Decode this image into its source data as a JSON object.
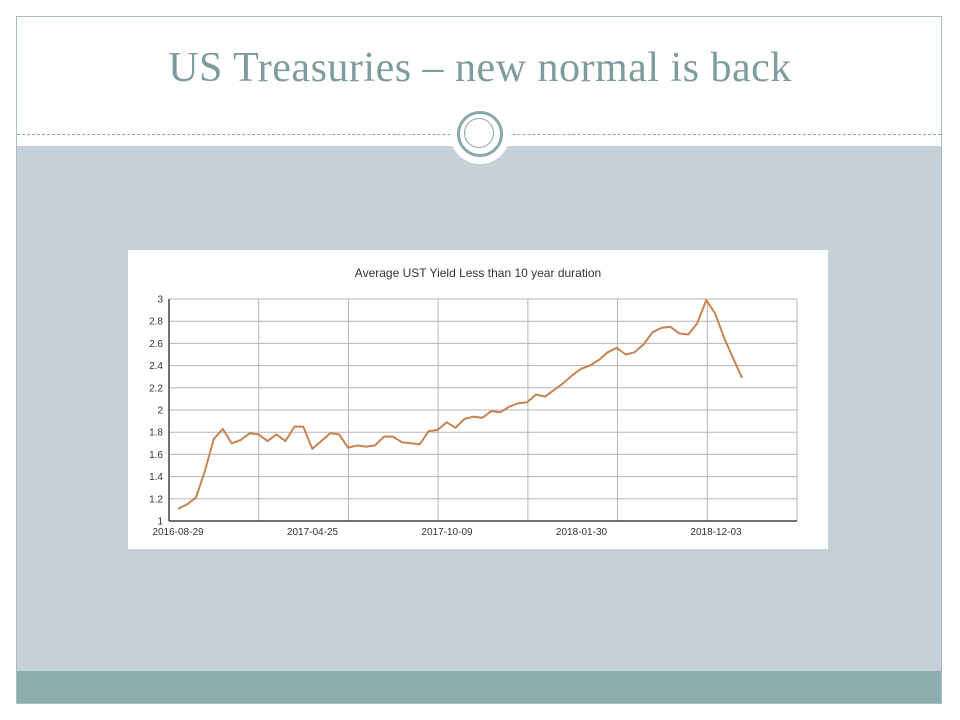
{
  "slide": {
    "title": "US Treasuries – new normal is back"
  },
  "colors": {
    "title": "#7f9c9c",
    "panel": "#c5d1d6",
    "footer": "#8badae",
    "line": "#c8834f"
  },
  "chart_data": {
    "type": "line",
    "title": "Average UST Yield Less than 10 year duration",
    "xlabel": "",
    "ylabel": "",
    "ylim": [
      1,
      3
    ],
    "yticks": [
      "1",
      "1.2",
      "1.4",
      "1.6",
      "1.8",
      "2",
      "2.2",
      "2.4",
      "2.6",
      "2.8",
      "3"
    ],
    "xtick_labels": [
      "2016-08-29",
      "2017-04-25",
      "2017-10-09",
      "2018-01-30",
      "2018-12-03"
    ],
    "grid": true,
    "series": [
      {
        "values": [
          1.11,
          1.15,
          1.21,
          1.45,
          1.74,
          1.83,
          1.7,
          1.73,
          1.79,
          1.78,
          1.72,
          1.78,
          1.72,
          1.85,
          1.85,
          1.65,
          1.72,
          1.79,
          1.78,
          1.66,
          1.68,
          1.67,
          1.68,
          1.76,
          1.76,
          1.71,
          1.7,
          1.69,
          1.81,
          1.82,
          1.89,
          1.84,
          1.92,
          1.94,
          1.93,
          1.99,
          1.98,
          2.03,
          2.06,
          2.07,
          2.14,
          2.12,
          2.18,
          2.24,
          2.31,
          2.37,
          2.4,
          2.45,
          2.52,
          2.56,
          2.5,
          2.52,
          2.59,
          2.7,
          2.74,
          2.75,
          2.69,
          2.68,
          2.78,
          2.99,
          2.87,
          2.65,
          2.47,
          2.29
        ]
      }
    ]
  }
}
